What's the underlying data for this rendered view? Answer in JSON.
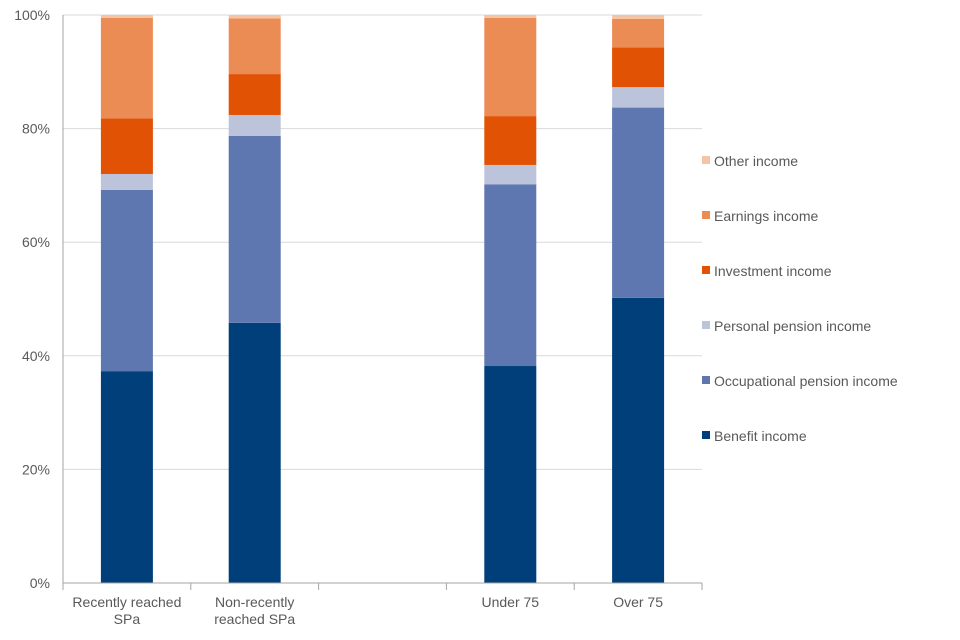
{
  "chart_data": {
    "type": "bar",
    "stacked": true,
    "categories": [
      [
        "Recently reached",
        "SPa"
      ],
      [
        "Non-recently",
        "reached SPa"
      ],
      [
        ""
      ],
      [
        "Under 75"
      ],
      [
        "Over 75"
      ]
    ],
    "y_ticks": [
      "0%",
      "20%",
      "40%",
      "60%",
      "80%",
      "100%"
    ],
    "ylim": [
      0,
      100
    ],
    "grid": true,
    "legend_position": "right",
    "series": [
      {
        "name": "Benefit income",
        "color": "#003f7a",
        "values": [
          37.3,
          45.8,
          null,
          38.2,
          50.2
        ]
      },
      {
        "name": "Occupational pension income",
        "color": "#5f77b1",
        "values": [
          31.9,
          32.9,
          null,
          32.0,
          33.5
        ]
      },
      {
        "name": "Personal pension income",
        "color": "#bcc4dc",
        "values": [
          2.8,
          3.7,
          null,
          3.4,
          3.6
        ]
      },
      {
        "name": "Investment income",
        "color": "#e15205",
        "values": [
          9.8,
          7.2,
          null,
          8.6,
          7.0
        ]
      },
      {
        "name": "Earnings income",
        "color": "#ec8c55",
        "values": [
          17.7,
          9.8,
          null,
          17.3,
          5.0
        ]
      },
      {
        "name": "Other income",
        "color": "#f4c4a5",
        "values": [
          0.5,
          0.6,
          null,
          0.5,
          0.7
        ]
      }
    ]
  }
}
